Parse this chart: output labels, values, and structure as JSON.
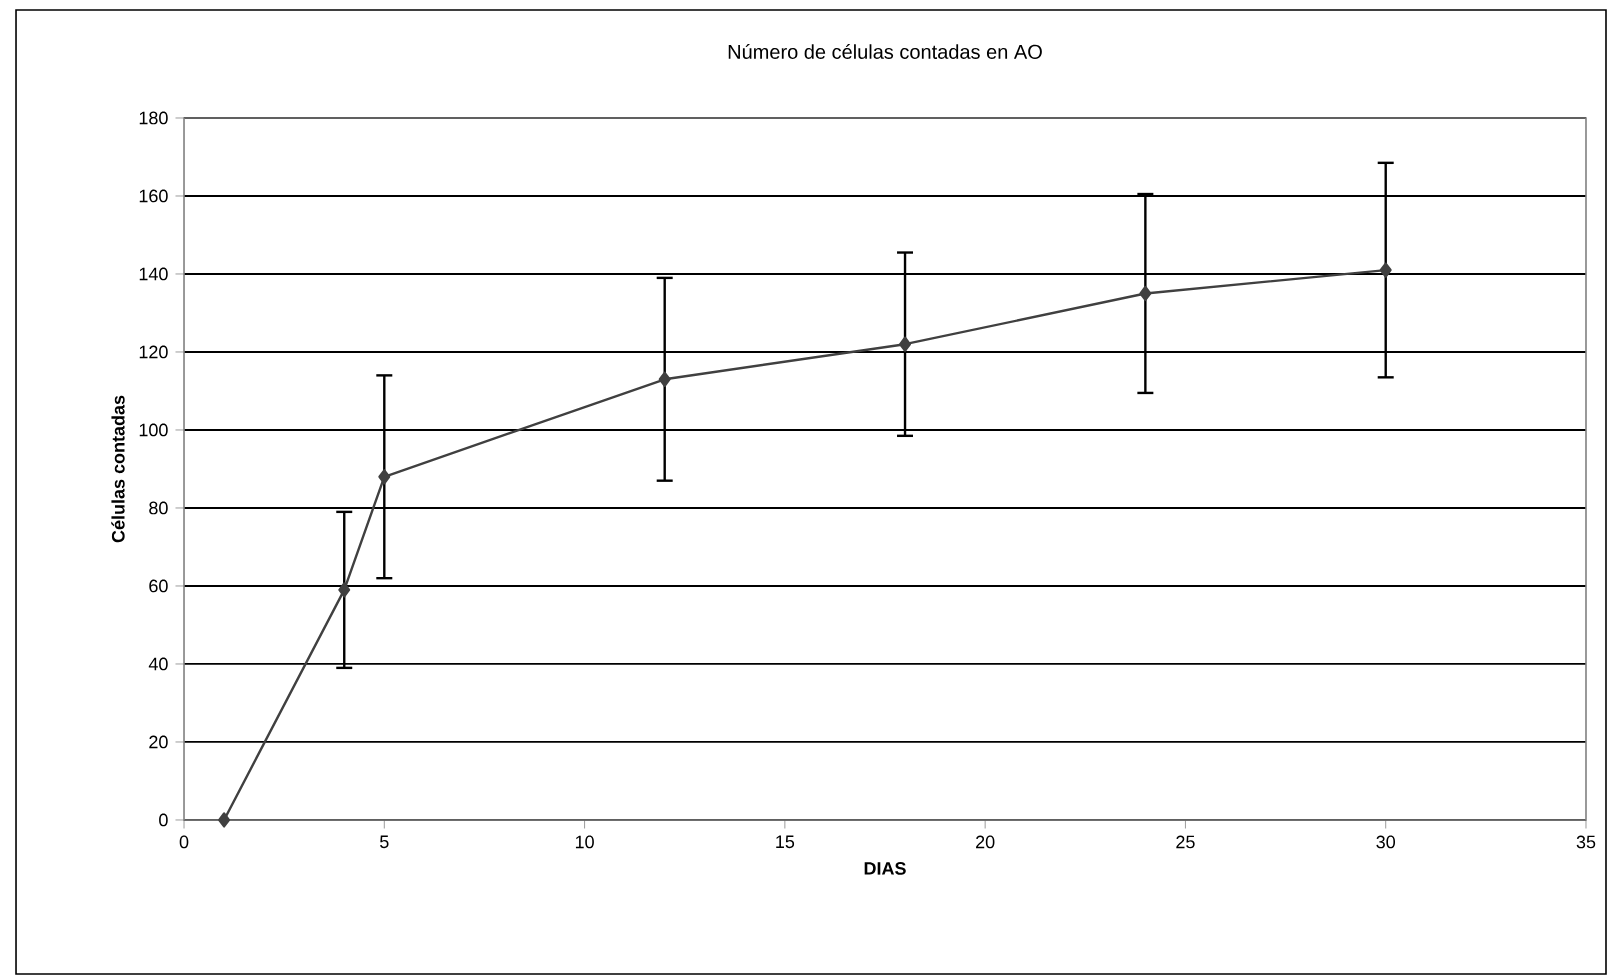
{
  "chart_data": {
    "type": "line",
    "title": "Número de células contadas en AO",
    "xlabel": "DIAS",
    "ylabel": "Células contadas",
    "x": [
      1,
      4,
      5,
      12,
      18,
      24,
      30
    ],
    "series": [
      {
        "color": "#404040",
        "values": [
          0,
          59,
          88,
          113,
          122,
          135,
          141
        ],
        "errors": [
          null,
          20,
          26,
          26,
          23.5,
          25.5,
          27.5
        ]
      }
    ],
    "xlim": [
      0,
      35
    ],
    "xticks": [
      0,
      5,
      10,
      15,
      20,
      25,
      30,
      35
    ],
    "ylim": [
      0,
      180
    ],
    "yticks": [
      0,
      20,
      40,
      60,
      80,
      100,
      120,
      140,
      160,
      180
    ],
    "grid": "y",
    "marker": "diamond",
    "line_style": "solid"
  }
}
